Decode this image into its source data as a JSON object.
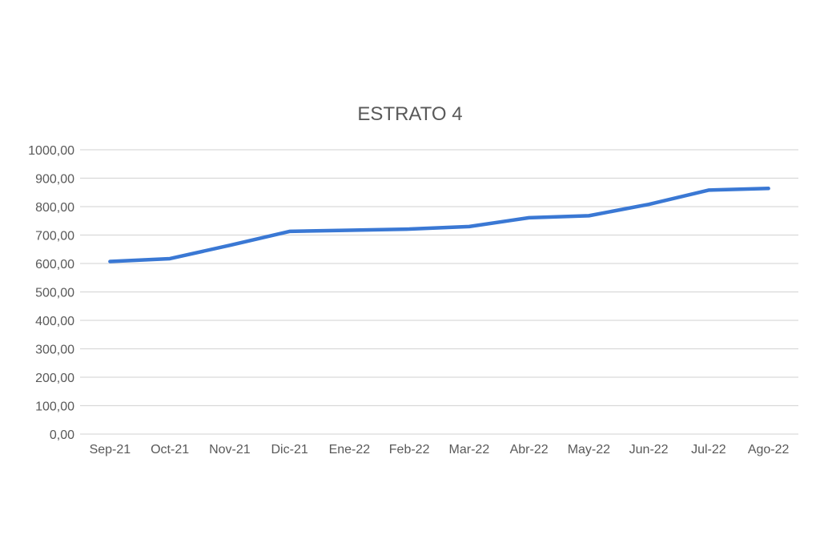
{
  "chart_data": {
    "type": "line",
    "title": "ESTRATO 4",
    "xlabel": "",
    "ylabel": "",
    "categories": [
      "Sep-21",
      "Oct-21",
      "Nov-21",
      "Dic-21",
      "Ene-22",
      "Feb-22",
      "Mar-22",
      "Abr-22",
      "May-22",
      "Jun-22",
      "Jul-22",
      "Ago-22"
    ],
    "series": [
      {
        "values": [
          607,
          617,
          664,
          713,
          717,
          721,
          730,
          761,
          768,
          808,
          858,
          864
        ]
      }
    ],
    "ylim": [
      0,
      1000
    ],
    "yticks": [
      "0,00",
      "100,00",
      "200,00",
      "300,00",
      "400,00",
      "500,00",
      "600,00",
      "700,00",
      "800,00",
      "900,00",
      "1000,00"
    ],
    "grid": true,
    "legend": "none",
    "colors": {
      "line": "#3A78D4",
      "grid": "#D9D9D9",
      "text": "#595959"
    }
  }
}
